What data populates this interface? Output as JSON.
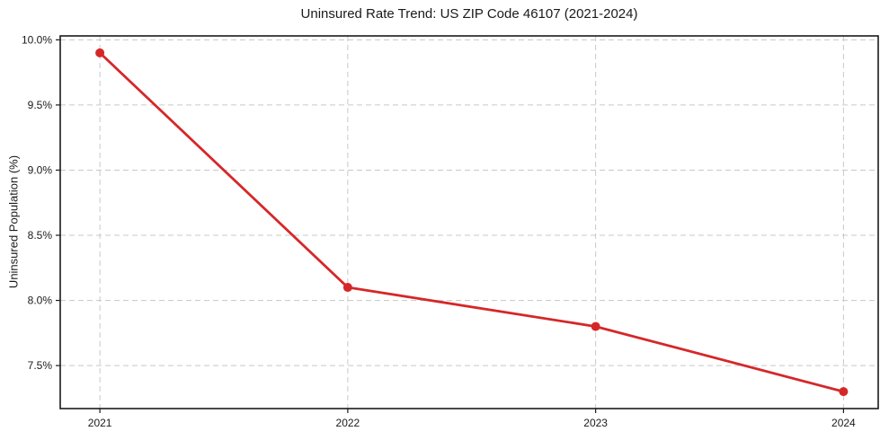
{
  "chart_data": {
    "type": "line",
    "title": "Uninsured Rate Trend: US ZIP Code 46107 (2021-2024)",
    "categories": [
      "2021",
      "2022",
      "2023",
      "2024"
    ],
    "x": [
      2021,
      2022,
      2023,
      2024
    ],
    "values": [
      9.9,
      8.1,
      7.8,
      7.3
    ],
    "xlabel": "",
    "ylabel": "Uninsured Population (%)",
    "xlim": [
      2020.84,
      2024.14
    ],
    "ylim": [
      7.17,
      10.03
    ],
    "xticks": [
      2021,
      2022,
      2023,
      2024
    ],
    "xtick_labels": [
      "2021",
      "2022",
      "2023",
      "2024"
    ],
    "yticks": [
      7.5,
      8.0,
      8.5,
      9.0,
      9.5,
      10.0
    ],
    "ytick_labels": [
      "7.5%",
      "8.0%",
      "8.5%",
      "9.0%",
      "9.5%",
      "10.0%"
    ],
    "grid": true,
    "grid_style": "dashed",
    "legend_position": "none",
    "colors": {
      "line": "#d62728",
      "marker": "#d62728",
      "grid": "#c8c8c8",
      "spine": "#1a1a1a",
      "text": "#1a1a1a",
      "background": "#ffffff"
    },
    "marker": "circle",
    "line_width": 2.8,
    "marker_radius": 5
  }
}
